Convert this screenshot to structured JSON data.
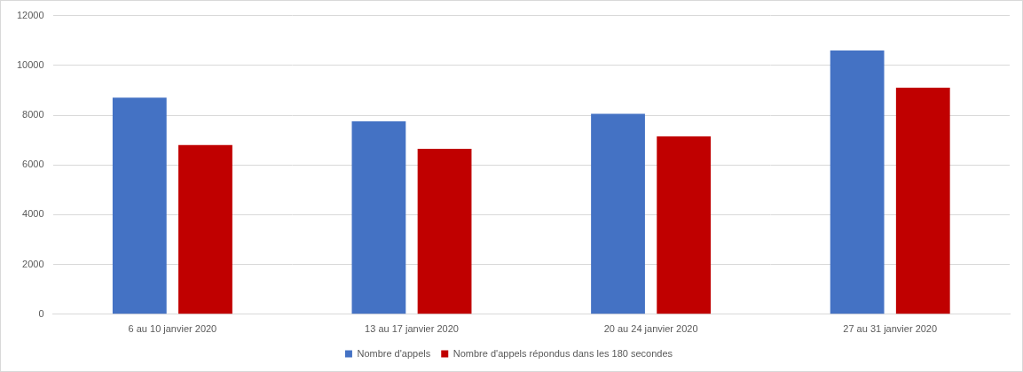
{
  "chart_data": {
    "type": "bar",
    "categories": [
      "6 au 10 janvier 2020",
      "13 au 17 janvier 2020",
      "20 au 24 janvier 2020",
      "27 au 31 janvier 2020"
    ],
    "series": [
      {
        "name": "Nombre d'appels",
        "color": "#4472c4",
        "values": [
          8700,
          7750,
          8050,
          10600
        ]
      },
      {
        "name": "Nombre d'appels répondus dans les 180 secondes",
        "color": "#c00000",
        "values": [
          6800,
          6650,
          7150,
          9100
        ]
      }
    ],
    "ylim": [
      0,
      12000
    ],
    "yticks": [
      0,
      2000,
      4000,
      6000,
      8000,
      10000,
      12000
    ],
    "grid": true,
    "legend": "bottom"
  }
}
